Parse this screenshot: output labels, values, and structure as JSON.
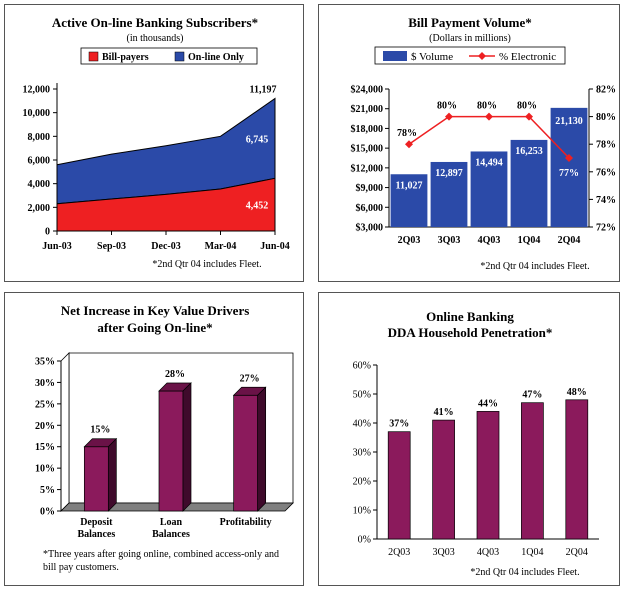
{
  "chart_data": [
    {
      "type": "area",
      "title": "Active On-line Banking Subscribers*",
      "subtitle": "(in thousands)",
      "categories": [
        "Jun-03",
        "Sep-03",
        "Dec-03",
        "Mar-04",
        "Jun-04"
      ],
      "series": [
        {
          "name": "Bill-payers",
          "values": [
            2300,
            2700,
            3100,
            3550,
            4452
          ],
          "color": "#ee2022"
        },
        {
          "name": "On-line Only",
          "values": [
            3300,
            3800,
            4100,
            4450,
            6745
          ],
          "color": "#2b4aa8"
        }
      ],
      "totals": [
        5600,
        6500,
        7200,
        8000,
        11197
      ],
      "data_labels": {
        "bill_payers_last": "4,452",
        "online_only_last": "6,745",
        "total_last": "11,197"
      },
      "yticks": [
        "0",
        "2,000",
        "4,000",
        "6,000",
        "8,000",
        "10,000",
        "12,000"
      ],
      "ylim": [
        0,
        12000
      ],
      "footnote": "*2nd Qtr 04 includes Fleet."
    },
    {
      "type": "bar",
      "title": "Bill Payment Volume*",
      "subtitle": "(Dollars in millions)",
      "categories": [
        "2Q03",
        "3Q03",
        "4Q03",
        "1Q04",
        "2Q04"
      ],
      "series": [
        {
          "name": "$ Volume",
          "values": [
            11027,
            12897,
            14494,
            16253,
            21130
          ],
          "labels": [
            "11,027",
            "12,897",
            "14,494",
            "16,253",
            "21,130"
          ],
          "color": "#2b4aa8"
        },
        {
          "name": "% Electronic",
          "type": "line",
          "values": [
            78,
            80,
            80,
            80,
            77
          ],
          "labels": [
            "78%",
            "80%",
            "80%",
            "80%",
            "77%"
          ],
          "color": "#ee2022"
        }
      ],
      "yticks": [
        "$3,000",
        "$6,000",
        "$9,000",
        "$12,000",
        "$15,000",
        "$18,000",
        "$21,000",
        "$24,000"
      ],
      "ylim": [
        3000,
        24000
      ],
      "y2ticks": [
        "72%",
        "74%",
        "76%",
        "78%",
        "80%",
        "82%"
      ],
      "y2lim": [
        72,
        82
      ],
      "footnote": "*2nd Qtr 04 includes Fleet."
    },
    {
      "type": "bar",
      "title": "Net Increase in Key Value Drivers",
      "title2": "after Going On-line*",
      "categories": [
        [
          "Deposit",
          "Balances"
        ],
        [
          "Loan",
          "Balances"
        ],
        [
          "Profitability"
        ]
      ],
      "values": [
        15,
        28,
        27
      ],
      "labels": [
        "15%",
        "28%",
        "27%"
      ],
      "yticks": [
        "0%",
        "5%",
        "10%",
        "15%",
        "20%",
        "25%",
        "30%",
        "35%"
      ],
      "ylim": [
        0,
        35
      ],
      "color": "#8b1a5c",
      "footnote": [
        "*Three years after going online, combined access-only and",
        "bill pay customers."
      ]
    },
    {
      "type": "bar",
      "title": "Online Banking",
      "title2": "DDA Household Penetration*",
      "categories": [
        "2Q03",
        "3Q03",
        "4Q03",
        "1Q04",
        "2Q04"
      ],
      "values": [
        37,
        41,
        44,
        47,
        48
      ],
      "labels": [
        "37%",
        "41%",
        "44%",
        "47%",
        "48%"
      ],
      "yticks": [
        "0%",
        "10%",
        "20%",
        "30%",
        "40%",
        "50%",
        "60%"
      ],
      "ylim": [
        0,
        60
      ],
      "color": "#8b1a5c",
      "footnote": "*2nd Qtr 04 includes Fleet."
    }
  ]
}
